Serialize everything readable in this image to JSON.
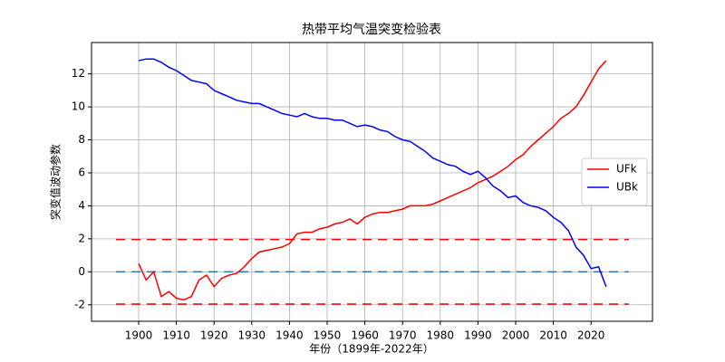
{
  "chart_data": {
    "type": "line",
    "title": "热带平均气温突变检验表",
    "x_label": "年份（1899年-2022年）",
    "y_label": "突变值波动参数",
    "x": [
      1900,
      1902,
      1904,
      1906,
      1908,
      1910,
      1912,
      1914,
      1916,
      1918,
      1920,
      1922,
      1924,
      1926,
      1928,
      1930,
      1932,
      1934,
      1936,
      1938,
      1940,
      1942,
      1944,
      1946,
      1948,
      1950,
      1952,
      1954,
      1956,
      1958,
      1960,
      1962,
      1964,
      1966,
      1968,
      1970,
      1972,
      1974,
      1976,
      1978,
      1980,
      1982,
      1984,
      1986,
      1988,
      1990,
      1992,
      1994,
      1996,
      1998,
      2000,
      2002,
      2004,
      2006,
      2008,
      2010,
      2012,
      2014,
      2016,
      2018,
      2020,
      2022,
      2024
    ],
    "series": [
      {
        "name": "UFk",
        "color": "#ff0000",
        "values": [
          0.5,
          -0.5,
          0.0,
          -1.5,
          -1.2,
          -1.6,
          -1.7,
          -1.5,
          -0.5,
          -0.2,
          -0.9,
          -0.4,
          -0.2,
          -0.1,
          0.3,
          0.8,
          1.2,
          1.3,
          1.4,
          1.5,
          1.7,
          2.3,
          2.4,
          2.4,
          2.6,
          2.7,
          2.9,
          3.0,
          3.2,
          2.9,
          3.3,
          3.5,
          3.6,
          3.6,
          3.7,
          3.8,
          4.0,
          4.0,
          4.0,
          4.1,
          4.3,
          4.5,
          4.7,
          4.9,
          5.1,
          5.4,
          5.6,
          5.8,
          6.1,
          6.4,
          6.8,
          7.1,
          7.6,
          8.0,
          8.4,
          8.8,
          9.3,
          9.6,
          10.0,
          10.7,
          11.5,
          12.3,
          12.8
        ]
      },
      {
        "name": "UBk",
        "color": "#0000ff",
        "values": [
          12.8,
          12.9,
          12.9,
          12.7,
          12.4,
          12.2,
          11.9,
          11.6,
          11.5,
          11.4,
          11.0,
          10.8,
          10.6,
          10.4,
          10.3,
          10.2,
          10.2,
          10.0,
          9.8,
          9.6,
          9.5,
          9.4,
          9.6,
          9.4,
          9.3,
          9.3,
          9.2,
          9.2,
          9.0,
          8.8,
          8.9,
          8.8,
          8.6,
          8.5,
          8.2,
          8.0,
          7.9,
          7.6,
          7.3,
          6.9,
          6.7,
          6.5,
          6.4,
          6.1,
          5.9,
          6.1,
          5.7,
          5.2,
          4.9,
          4.5,
          4.6,
          4.2,
          4.0,
          3.9,
          3.7,
          3.3,
          3.0,
          2.5,
          1.5,
          1.0,
          0.2,
          0.3,
          -0.9
        ]
      }
    ],
    "hlines": [
      {
        "y": 1.96,
        "color": "#ff0000"
      },
      {
        "y": 0,
        "color": "#1f77b4"
      },
      {
        "y": -1.96,
        "color": "#ff0000"
      }
    ],
    "hline_xlim": [
      1894,
      2030
    ],
    "xlim": [
      1887.5,
      2036.3
    ],
    "ylim": [
      -3.0,
      13.9
    ],
    "xticks": [
      1900,
      1910,
      1920,
      1930,
      1940,
      1950,
      1960,
      1970,
      1980,
      1990,
      2000,
      2010,
      2020
    ],
    "yticks": [
      -2,
      0,
      2,
      4,
      6,
      8,
      10,
      12
    ],
    "grid": true,
    "legend": "center right"
  }
}
